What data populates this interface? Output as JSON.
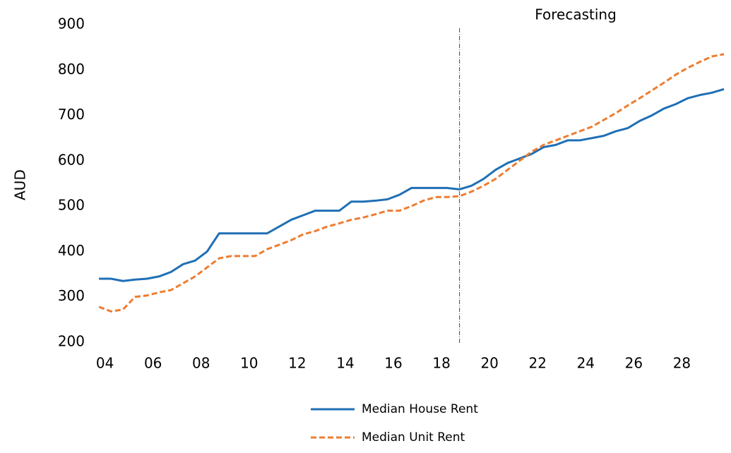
{
  "chart_data": {
    "type": "line",
    "y_label": "AUD",
    "annotation": {
      "text": "Forecasting",
      "x": 18.75
    },
    "x": [
      3.75,
      4.25,
      4.75,
      5.25,
      5.75,
      6.25,
      6.75,
      7.25,
      7.75,
      8.25,
      8.75,
      9.25,
      9.75,
      10.25,
      10.75,
      11.25,
      11.75,
      12.25,
      12.75,
      13.25,
      13.75,
      14.25,
      14.75,
      15.25,
      15.75,
      16.25,
      16.75,
      17.25,
      17.75,
      18.25,
      18.75,
      19.25,
      19.75,
      20.25,
      20.75,
      21.25,
      21.75,
      22.25,
      22.75,
      23.25,
      23.75,
      24.25,
      24.75,
      25.25,
      25.75,
      26.25,
      26.75,
      27.25,
      27.75,
      28.25,
      28.75,
      29.25,
      29.75
    ],
    "series": [
      {
        "name": "Median House Rent",
        "color": "#1f6fb5",
        "dash": false,
        "values": [
          340,
          340,
          335,
          338,
          340,
          345,
          355,
          372,
          380,
          400,
          440,
          440,
          440,
          440,
          440,
          455,
          470,
          480,
          490,
          490,
          490,
          510,
          510,
          512,
          515,
          525,
          540,
          540,
          540,
          540,
          537,
          545,
          560,
          580,
          595,
          605,
          615,
          630,
          635,
          645,
          645,
          650,
          655,
          665,
          672,
          688,
          700,
          715,
          725,
          738,
          745,
          750,
          758
        ]
      },
      {
        "name": "Median Unit Rent",
        "color": "#ed7d31",
        "dash": true,
        "values": [
          278,
          268,
          272,
          300,
          303,
          310,
          315,
          330,
          345,
          365,
          385,
          390,
          390,
          390,
          405,
          415,
          425,
          438,
          445,
          455,
          462,
          470,
          475,
          482,
          490,
          490,
          500,
          512,
          520,
          520,
          522,
          532,
          545,
          560,
          580,
          600,
          620,
          635,
          645,
          655,
          665,
          675,
          690,
          705,
          722,
          738,
          755,
          772,
          790,
          805,
          818,
          830,
          835
        ]
      }
    ],
    "xlim": [
      3.6,
      29.75
    ],
    "xticks": [
      {
        "value": 4,
        "label": "04"
      },
      {
        "value": 6,
        "label": "06"
      },
      {
        "value": 8,
        "label": "08"
      },
      {
        "value": 10,
        "label": "10"
      },
      {
        "value": 12,
        "label": "12"
      },
      {
        "value": 14,
        "label": "14"
      },
      {
        "value": 16,
        "label": "16"
      },
      {
        "value": 18,
        "label": "18"
      },
      {
        "value": 20,
        "label": "20"
      },
      {
        "value": 22,
        "label": "22"
      },
      {
        "value": 24,
        "label": "24"
      },
      {
        "value": 26,
        "label": "26"
      },
      {
        "value": 28,
        "label": "28"
      }
    ],
    "ylim": [
      200,
      900
    ],
    "yticks": [
      200,
      300,
      400,
      500,
      600,
      700,
      800,
      900
    ],
    "grid": false,
    "legend": "bottom"
  }
}
